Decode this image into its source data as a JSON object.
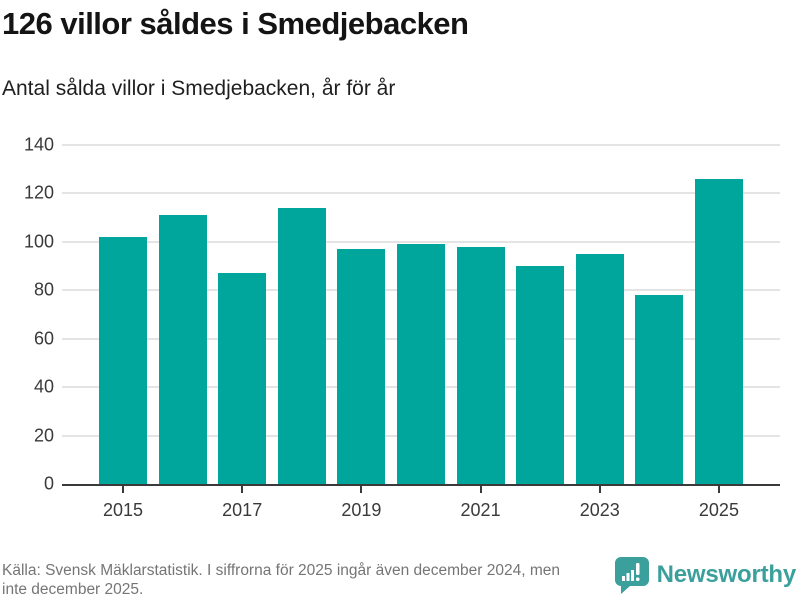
{
  "header": {
    "title": "126 villor såldes i Smedjebacken",
    "subtitle": "Antal sålda villor i Smedjebacken, år för år"
  },
  "chart_data": {
    "type": "bar",
    "title": "126 villor såldes i Smedjebacken",
    "subtitle": "Antal sålda villor i Smedjebacken, år för år",
    "categories": [
      "2015",
      "2016",
      "2017",
      "2018",
      "2019",
      "2020",
      "2021",
      "2022",
      "2023",
      "2024",
      "2025"
    ],
    "values": [
      102,
      111,
      87,
      114,
      97,
      99,
      98,
      90,
      95,
      78,
      126
    ],
    "x_tick_labels": [
      "2015",
      "",
      "2017",
      "",
      "2019",
      "",
      "2021",
      "",
      "2023",
      "",
      "2025"
    ],
    "y_ticks": [
      0,
      20,
      40,
      60,
      80,
      100,
      120,
      140
    ],
    "ylim": [
      0,
      140
    ],
    "xlabel": "",
    "ylabel": "",
    "grid": true,
    "legend": "none",
    "bar_color": "#00a59c"
  },
  "footer": {
    "source_text": "Källa: Svensk Mäklarstatistik. I siffrorna för 2025 ingår även december 2024, men inte december 2025.",
    "brand_name": "Newsworthy",
    "brand_color": "#3ba09c"
  },
  "colors": {
    "title_text": "#141414",
    "axis_text": "#3a3a3a",
    "gridline": "#e4e4e4",
    "axis_line": "#3a3a3a",
    "footer_text": "#757575"
  }
}
